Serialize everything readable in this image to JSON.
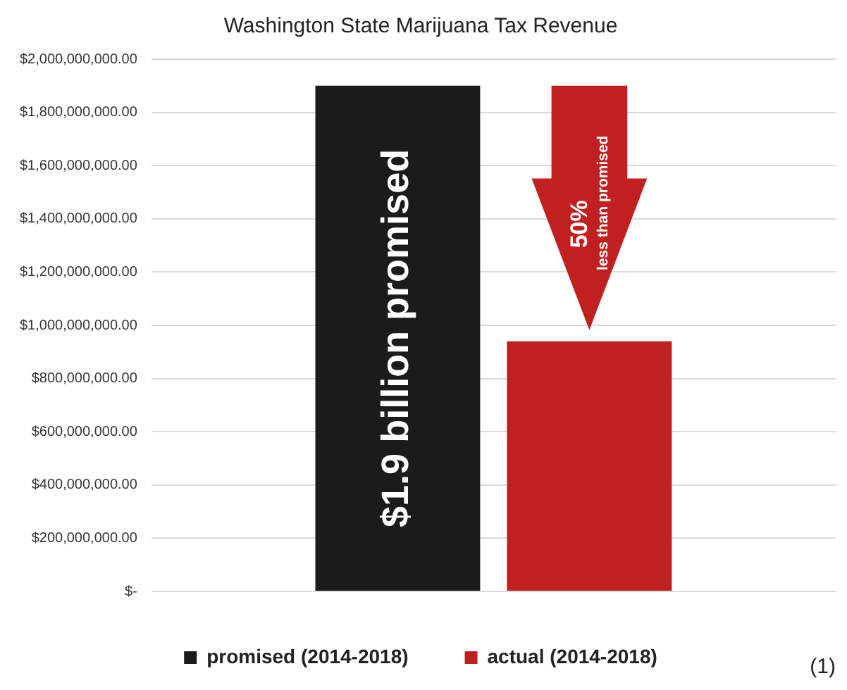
{
  "chart_data": {
    "type": "bar",
    "title": "Washington State Marijuana Tax Revenue",
    "categories": [
      null
    ],
    "series": [
      {
        "name": "promised (2014-2018)",
        "color": "#1b1b1b",
        "values": [
          1900000000
        ]
      },
      {
        "name": "actual (2014-2018)",
        "color": "#c0201f",
        "values": [
          940000000
        ]
      }
    ],
    "ylim": [
      0,
      2000000000
    ],
    "yticks": [
      {
        "value": 0,
        "label": "$-"
      },
      {
        "value": 200000000,
        "label": "$200,000,000.00"
      },
      {
        "value": 400000000,
        "label": "$400,000,000.00"
      },
      {
        "value": 600000000,
        "label": "$600,000,000.00"
      },
      {
        "value": 800000000,
        "label": "$800,000,000.00"
      },
      {
        "value": 1000000000,
        "label": "$1,000,000,000.00"
      },
      {
        "value": 1200000000,
        "label": "$1,200,000,000.00"
      },
      {
        "value": 1400000000,
        "label": "$1,400,000,000.00"
      },
      {
        "value": 1600000000,
        "label": "$1,600,000,000.00"
      },
      {
        "value": 1800000000,
        "label": "$1,800,000,000.00"
      },
      {
        "value": 2000000000,
        "label": "$2,000,000,000.00"
      }
    ],
    "grid": "y",
    "legend": "bottom",
    "annotations": [
      "$1.9 billion promised",
      "50%",
      "less than promised",
      "(1)"
    ]
  }
}
